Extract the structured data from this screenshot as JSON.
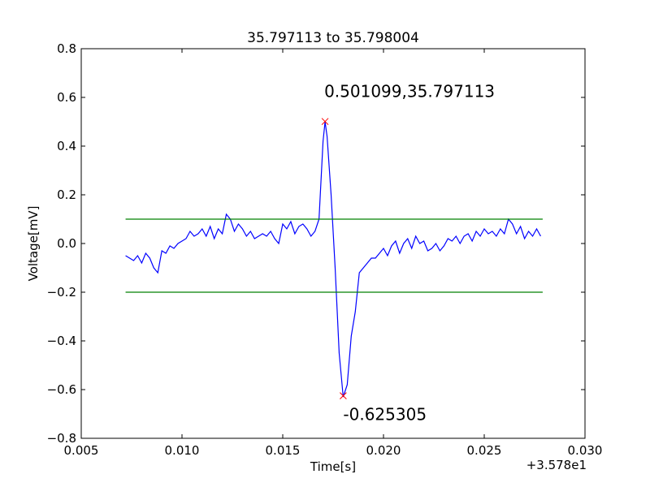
{
  "chart_data": {
    "type": "line",
    "title": "35.797113 to 35.798004",
    "xlabel": "Time[s]",
    "ylabel": "Voltage[mV]",
    "x_offset_label": "+3.578e1",
    "xlim": [
      0.005,
      0.03
    ],
    "ylim": [
      -0.8,
      0.8
    ],
    "x_ticks": [
      0.005,
      0.01,
      0.015,
      0.02,
      0.025,
      0.03
    ],
    "x_tick_labels": [
      "0.005",
      "0.010",
      "0.015",
      "0.020",
      "0.025",
      "0.030"
    ],
    "y_ticks": [
      -0.8,
      -0.6,
      -0.4,
      -0.2,
      0.0,
      0.2,
      0.4,
      0.6,
      0.8
    ],
    "y_tick_labels": [
      "−0.8",
      "−0.6",
      "−0.4",
      "−0.2",
      "0.0",
      "0.2",
      "0.4",
      "0.6",
      "0.8"
    ],
    "grid": false,
    "colors": {
      "signal": "#0000ff",
      "threshold": "#008000",
      "peak_marker": "#ff0000"
    },
    "series": [
      {
        "x": [
          0.0072,
          0.0074,
          0.0076,
          0.0078,
          0.008,
          0.0082,
          0.0084,
          0.0086,
          0.0088,
          0.009,
          0.0092,
          0.0094,
          0.0096,
          0.0098,
          0.01,
          0.0102,
          0.0104,
          0.0106,
          0.0108,
          0.011,
          0.0112,
          0.0114,
          0.0116,
          0.0118,
          0.012,
          0.0122,
          0.0124,
          0.0126,
          0.0128,
          0.013,
          0.0132,
          0.0134,
          0.0136,
          0.0138,
          0.014,
          0.0142,
          0.0144,
          0.0146,
          0.0148,
          0.015,
          0.0152,
          0.0154,
          0.0156,
          0.0158,
          0.016,
          0.0162,
          0.0164,
          0.0166,
          0.0168,
          0.017,
          0.0171,
          0.0172,
          0.0174,
          0.0176,
          0.0178,
          0.018,
          0.0182,
          0.0184,
          0.0186,
          0.0188,
          0.019,
          0.0192,
          0.0194,
          0.0196,
          0.0198,
          0.02,
          0.0202,
          0.0204,
          0.0206,
          0.0208,
          0.021,
          0.0212,
          0.0214,
          0.0216,
          0.0218,
          0.022,
          0.0222,
          0.0224,
          0.0226,
          0.0228,
          0.023,
          0.0232,
          0.0234,
          0.0236,
          0.0238,
          0.024,
          0.0242,
          0.0244,
          0.0246,
          0.0248,
          0.025,
          0.0252,
          0.0254,
          0.0256,
          0.0258,
          0.026,
          0.0262,
          0.0264,
          0.0266,
          0.0268,
          0.027,
          0.0272,
          0.0274,
          0.0276,
          0.0278
        ],
        "y": [
          -0.05,
          -0.06,
          -0.07,
          -0.05,
          -0.08,
          -0.04,
          -0.06,
          -0.1,
          -0.12,
          -0.03,
          -0.04,
          -0.01,
          -0.02,
          0.0,
          0.01,
          0.02,
          0.05,
          0.03,
          0.04,
          0.06,
          0.03,
          0.07,
          0.02,
          0.06,
          0.04,
          0.12,
          0.1,
          0.05,
          0.08,
          0.06,
          0.03,
          0.05,
          0.02,
          0.03,
          0.04,
          0.03,
          0.05,
          0.02,
          0.0,
          0.08,
          0.06,
          0.09,
          0.04,
          0.07,
          0.08,
          0.06,
          0.03,
          0.05,
          0.1,
          0.42,
          0.5,
          0.44,
          0.2,
          -0.1,
          -0.45,
          -0.63,
          -0.58,
          -0.38,
          -0.28,
          -0.12,
          -0.1,
          -0.08,
          -0.06,
          -0.06,
          -0.04,
          -0.02,
          -0.05,
          -0.01,
          0.01,
          -0.04,
          0.0,
          0.02,
          -0.02,
          0.03,
          0.0,
          0.01,
          -0.03,
          -0.02,
          0.0,
          -0.03,
          -0.01,
          0.02,
          0.01,
          0.03,
          0.0,
          0.03,
          0.04,
          0.01,
          0.05,
          0.03,
          0.06,
          0.04,
          0.05,
          0.03,
          0.06,
          0.04,
          0.1,
          0.08,
          0.04,
          0.07,
          0.02,
          0.05,
          0.03,
          0.06,
          0.03
        ],
        "color": "#0000ff"
      },
      {
        "x": [
          0.0072,
          0.0279
        ],
        "y": [
          0.1,
          0.1
        ],
        "color": "#008000"
      },
      {
        "x": [
          0.0072,
          0.0279
        ],
        "y": [
          -0.2,
          -0.2
        ],
        "color": "#008000"
      }
    ],
    "peaks": [
      {
        "x": 0.0171,
        "y": 0.501099,
        "label": "0.501099,35.797113"
      },
      {
        "x": 0.018,
        "y": -0.625305,
        "label": "-0.625305"
      }
    ]
  }
}
